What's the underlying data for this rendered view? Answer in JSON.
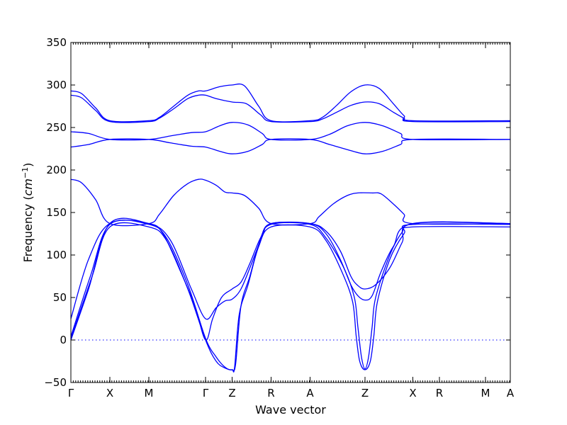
{
  "chart_data": {
    "type": "line",
    "title": "",
    "xlabel": "Wave vector",
    "ylabel": "Frequency",
    "ylabel_unit": "cm",
    "ylabel_exponent": "−1",
    "ylim": [
      -50,
      350
    ],
    "y_ticks": [
      "−50",
      "0",
      "50",
      "100",
      "150",
      "200",
      "250",
      "300",
      "350"
    ],
    "y_tick_values": [
      -50,
      0,
      50,
      100,
      150,
      200,
      250,
      300,
      350
    ],
    "x_range": [
      0,
      12.4
    ],
    "x_ticks": [
      {
        "label": "Γ",
        "x": 0
      },
      {
        "label": "X",
        "x": 1.1
      },
      {
        "label": "M",
        "x": 2.2
      },
      {
        "label": "Γ",
        "x": 3.8
      },
      {
        "label": "Z",
        "x": 4.55
      },
      {
        "label": "R",
        "x": 5.65
      },
      {
        "label": "A",
        "x": 6.75
      },
      {
        "label": "Z",
        "x": 8.3
      },
      {
        "label": "X",
        "x": 9.65
      },
      {
        "label": "R",
        "x": 10.4
      },
      {
        "label": "M",
        "x": 11.7
      },
      {
        "label": "A",
        "x": 12.4
      }
    ],
    "zero_line": 0,
    "line_color": "#0000ff",
    "series": [
      {
        "values": [
          [
            0,
            2
          ],
          [
            0.6,
            75
          ],
          [
            1.1,
            133
          ],
          [
            2.2,
            133
          ],
          [
            2.7,
            117
          ],
          [
            3.3,
            60
          ],
          [
            3.8,
            0
          ],
          [
            4.1,
            -25
          ],
          [
            4.35,
            -33
          ],
          [
            4.55,
            -35
          ],
          [
            4.62,
            -32
          ],
          [
            4.75,
            30
          ],
          [
            5.0,
            65
          ],
          [
            5.3,
            110
          ],
          [
            5.65,
            133
          ],
          [
            6.75,
            133
          ],
          [
            7.2,
            117
          ],
          [
            7.65,
            80
          ],
          [
            7.95,
            45
          ],
          [
            8.05,
            5
          ],
          [
            8.15,
            -25
          ],
          [
            8.3,
            -35
          ],
          [
            8.45,
            -25
          ],
          [
            8.55,
            5
          ],
          [
            8.65,
            45
          ],
          [
            9.0,
            95
          ],
          [
            9.4,
            125
          ],
          [
            9.65,
            133
          ],
          [
            12.4,
            133
          ]
        ]
      },
      {
        "values": [
          [
            0,
            4
          ],
          [
            0.55,
            75
          ],
          [
            1.1,
            136
          ],
          [
            2.2,
            136
          ],
          [
            2.7,
            120
          ],
          [
            3.3,
            65
          ],
          [
            3.8,
            2
          ],
          [
            4.1,
            -20
          ],
          [
            4.35,
            -32
          ],
          [
            4.55,
            -35
          ],
          [
            4.65,
            -28
          ],
          [
            4.8,
            40
          ],
          [
            5.05,
            75
          ],
          [
            5.35,
            118
          ],
          [
            5.65,
            136
          ],
          [
            6.75,
            136
          ],
          [
            7.2,
            120
          ],
          [
            7.7,
            85
          ],
          [
            8.0,
            50
          ],
          [
            8.1,
            15
          ],
          [
            8.2,
            -20
          ],
          [
            8.3,
            -34
          ],
          [
            8.4,
            -20
          ],
          [
            8.5,
            15
          ],
          [
            8.6,
            50
          ],
          [
            9.0,
            100
          ],
          [
            9.35,
            127
          ],
          [
            9.65,
            136
          ],
          [
            12.4,
            136
          ]
        ]
      },
      {
        "values": [
          [
            0,
            25
          ],
          [
            0.5,
            95
          ],
          [
            1.1,
            137
          ],
          [
            2.2,
            137
          ],
          [
            2.8,
            118
          ],
          [
            3.4,
            60
          ],
          [
            3.8,
            25
          ],
          [
            4.1,
            38
          ],
          [
            4.35,
            46
          ],
          [
            4.55,
            48
          ],
          [
            4.8,
            60
          ],
          [
            5.1,
            90
          ],
          [
            5.4,
            122
          ],
          [
            5.65,
            137
          ],
          [
            6.75,
            137
          ],
          [
            7.2,
            125
          ],
          [
            7.6,
            95
          ],
          [
            7.9,
            65
          ],
          [
            8.1,
            52
          ],
          [
            8.3,
            47
          ],
          [
            8.5,
            52
          ],
          [
            8.75,
            80
          ],
          [
            9.1,
            110
          ],
          [
            9.65,
            137
          ],
          [
            12.4,
            137
          ]
        ]
      },
      {
        "values": [
          [
            0,
            0
          ],
          [
            0.5,
            60
          ],
          [
            1.1,
            137
          ],
          [
            2.2,
            137
          ],
          [
            2.6,
            125
          ],
          [
            3.1,
            80
          ],
          [
            3.5,
            40
          ],
          [
            3.8,
            0
          ],
          [
            4.0,
            25
          ],
          [
            4.25,
            50
          ],
          [
            4.55,
            60
          ],
          [
            4.8,
            68
          ],
          [
            5.05,
            90
          ],
          [
            5.35,
            120
          ],
          [
            5.65,
            137
          ],
          [
            6.75,
            137
          ],
          [
            7.2,
            128
          ],
          [
            7.6,
            105
          ],
          [
            7.9,
            75
          ],
          [
            8.1,
            64
          ],
          [
            8.3,
            60
          ],
          [
            8.6,
            65
          ],
          [
            9.0,
            85
          ],
          [
            9.35,
            115
          ],
          [
            9.65,
            137
          ],
          [
            12.4,
            137
          ]
        ]
      },
      {
        "values": [
          [
            0,
            189
          ],
          [
            0.3,
            185
          ],
          [
            0.7,
            165
          ],
          [
            1.1,
            137
          ],
          [
            2.2,
            137
          ],
          [
            2.5,
            148
          ],
          [
            2.9,
            170
          ],
          [
            3.3,
            184
          ],
          [
            3.6,
            189
          ],
          [
            3.8,
            188
          ],
          [
            4.1,
            182
          ],
          [
            4.35,
            174
          ],
          [
            4.55,
            173
          ],
          [
            4.9,
            170
          ],
          [
            5.3,
            155
          ],
          [
            5.65,
            137
          ],
          [
            6.75,
            137
          ],
          [
            7.0,
            145
          ],
          [
            7.4,
            160
          ],
          [
            7.8,
            170
          ],
          [
            8.1,
            173
          ],
          [
            8.5,
            173
          ],
          [
            8.75,
            172
          ],
          [
            9.1,
            160
          ],
          [
            9.4,
            148
          ],
          [
            9.65,
            137
          ],
          [
            12.4,
            137
          ]
        ]
      },
      {
        "values": [
          [
            0,
            227
          ],
          [
            0.5,
            230
          ],
          [
            1.1,
            236
          ],
          [
            2.2,
            236
          ],
          [
            2.8,
            232
          ],
          [
            3.4,
            228
          ],
          [
            3.8,
            227
          ],
          [
            4.2,
            222
          ],
          [
            4.55,
            219
          ],
          [
            5.0,
            222
          ],
          [
            5.4,
            230
          ],
          [
            5.65,
            236
          ],
          [
            6.75,
            236
          ],
          [
            7.3,
            230
          ],
          [
            7.8,
            224
          ],
          [
            8.3,
            219
          ],
          [
            8.8,
            222
          ],
          [
            9.3,
            230
          ],
          [
            9.65,
            236
          ],
          [
            12.4,
            236
          ]
        ]
      },
      {
        "values": [
          [
            0,
            245
          ],
          [
            0.5,
            243
          ],
          [
            1.1,
            236
          ],
          [
            2.2,
            236
          ],
          [
            2.8,
            240
          ],
          [
            3.4,
            244
          ],
          [
            3.8,
            245
          ],
          [
            4.2,
            252
          ],
          [
            4.55,
            256
          ],
          [
            5.0,
            253
          ],
          [
            5.4,
            243
          ],
          [
            5.65,
            236
          ],
          [
            6.75,
            236
          ],
          [
            7.3,
            242
          ],
          [
            7.8,
            252
          ],
          [
            8.3,
            256
          ],
          [
            8.8,
            252
          ],
          [
            9.3,
            243
          ],
          [
            9.65,
            236
          ],
          [
            12.4,
            236
          ]
        ]
      },
      {
        "values": [
          [
            0,
            288
          ],
          [
            0.3,
            285
          ],
          [
            0.7,
            270
          ],
          [
            1.1,
            257
          ],
          [
            2.2,
            257
          ],
          [
            2.5,
            261
          ],
          [
            2.9,
            272
          ],
          [
            3.3,
            284
          ],
          [
            3.6,
            288
          ],
          [
            3.8,
            288
          ],
          [
            4.1,
            284
          ],
          [
            4.55,
            280
          ],
          [
            4.95,
            278
          ],
          [
            5.35,
            265
          ],
          [
            5.65,
            257
          ],
          [
            6.75,
            257
          ],
          [
            7.1,
            260
          ],
          [
            7.5,
            268
          ],
          [
            7.9,
            276
          ],
          [
            8.3,
            280
          ],
          [
            8.7,
            278
          ],
          [
            9.1,
            268
          ],
          [
            9.4,
            261
          ],
          [
            9.65,
            257
          ],
          [
            12.4,
            257
          ]
        ]
      },
      {
        "values": [
          [
            0,
            293
          ],
          [
            0.3,
            290
          ],
          [
            0.7,
            273
          ],
          [
            1.1,
            258
          ],
          [
            2.2,
            258
          ],
          [
            2.5,
            262
          ],
          [
            2.9,
            275
          ],
          [
            3.3,
            288
          ],
          [
            3.6,
            293
          ],
          [
            3.8,
            293
          ],
          [
            4.2,
            298
          ],
          [
            4.55,
            300
          ],
          [
            4.9,
            299
          ],
          [
            5.3,
            275
          ],
          [
            5.65,
            258
          ],
          [
            6.75,
            258
          ],
          [
            7.1,
            262
          ],
          [
            7.5,
            276
          ],
          [
            7.9,
            292
          ],
          [
            8.3,
            300
          ],
          [
            8.7,
            296
          ],
          [
            9.1,
            278
          ],
          [
            9.4,
            264
          ],
          [
            9.65,
            258
          ],
          [
            12.4,
            258
          ]
        ]
      }
    ]
  }
}
